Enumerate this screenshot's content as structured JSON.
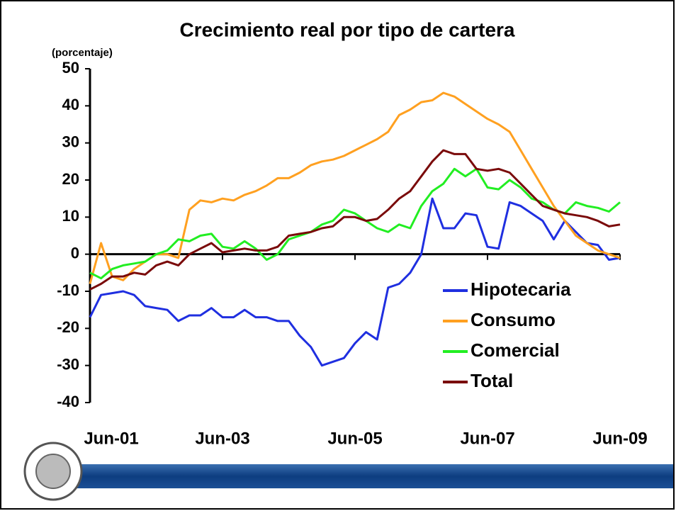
{
  "chart_data": {
    "type": "line",
    "title": "Crecimiento real por tipo de cartera",
    "y_label": "(porcentaje)",
    "categories": [
      "Jun-01",
      null,
      null,
      null,
      null,
      null,
      null,
      null,
      null,
      null,
      null,
      null,
      "Jun-03",
      null,
      null,
      null,
      null,
      null,
      null,
      null,
      null,
      null,
      null,
      null,
      "Jun-05",
      null,
      null,
      null,
      null,
      null,
      null,
      null,
      null,
      null,
      null,
      null,
      "Jun-07",
      null,
      null,
      null,
      null,
      null,
      null,
      null,
      null,
      null,
      null,
      null,
      "Jun-09"
    ],
    "series": [
      {
        "name": "Hipotecaria",
        "color": "#1f2fe0",
        "values": [
          -17,
          -11,
          -10.5,
          -10,
          -11,
          -14,
          -14.5,
          -15,
          -18,
          -16.5,
          -16.5,
          -14.5,
          -17,
          -17,
          -15,
          -17,
          -17,
          -18,
          -18,
          -22,
          -25,
          -30,
          -29,
          -28,
          -24,
          -21,
          -23,
          -9,
          -8,
          -5,
          0,
          15,
          7,
          7,
          11,
          10.5,
          2,
          1.5,
          14,
          13,
          11,
          9,
          4,
          9,
          6,
          3,
          2.5,
          -1.5,
          -1
        ]
      },
      {
        "name": "Consumo",
        "color": "#ffa020",
        "values": [
          -8,
          3,
          -6,
          -7,
          -4,
          -2,
          0,
          0,
          -1,
          12,
          14.5,
          14,
          15,
          14.5,
          16,
          17,
          18.5,
          20.5,
          20.5,
          22,
          24,
          25,
          25.5,
          26.5,
          28,
          29.5,
          31,
          33,
          37.5,
          39,
          41,
          41.5,
          43.5,
          42.5,
          40.5,
          38.5,
          36.5,
          35,
          33,
          28,
          23,
          18,
          13,
          9,
          5,
          3,
          1,
          0,
          -1
        ]
      },
      {
        "name": "Comercial",
        "color": "#22ee22",
        "values": [
          -5,
          -6.5,
          -4,
          -3,
          -2.5,
          -2,
          0,
          1,
          4,
          3.5,
          5,
          5.5,
          2,
          1.5,
          3.5,
          1.5,
          -1.5,
          0,
          4,
          5,
          6,
          8,
          9,
          12,
          11,
          9,
          7,
          6,
          8,
          7,
          13,
          17,
          19,
          23,
          21,
          23,
          18,
          17.5,
          20,
          18,
          15,
          14,
          12,
          11,
          14,
          13,
          12.5,
          11.5,
          14
        ]
      },
      {
        "name": "Total",
        "color": "#7a0a0a",
        "values": [
          -9.5,
          -8,
          -6,
          -6,
          -5,
          -5.5,
          -3,
          -2,
          -3,
          0,
          1.5,
          3,
          0.5,
          1,
          1.5,
          1,
          1,
          2,
          5,
          5.5,
          6,
          7,
          7.5,
          10,
          10,
          9,
          9.5,
          12,
          15,
          17,
          21,
          25,
          28,
          27,
          27,
          23,
          22.5,
          23,
          22,
          19,
          16,
          13,
          12,
          11,
          10.5,
          10,
          9,
          7.5,
          8
        ]
      }
    ],
    "ylim": [
      -40,
      50
    ],
    "yticks": [
      50,
      40,
      30,
      20,
      10,
      0,
      -10,
      -20,
      -30,
      -40
    ]
  }
}
